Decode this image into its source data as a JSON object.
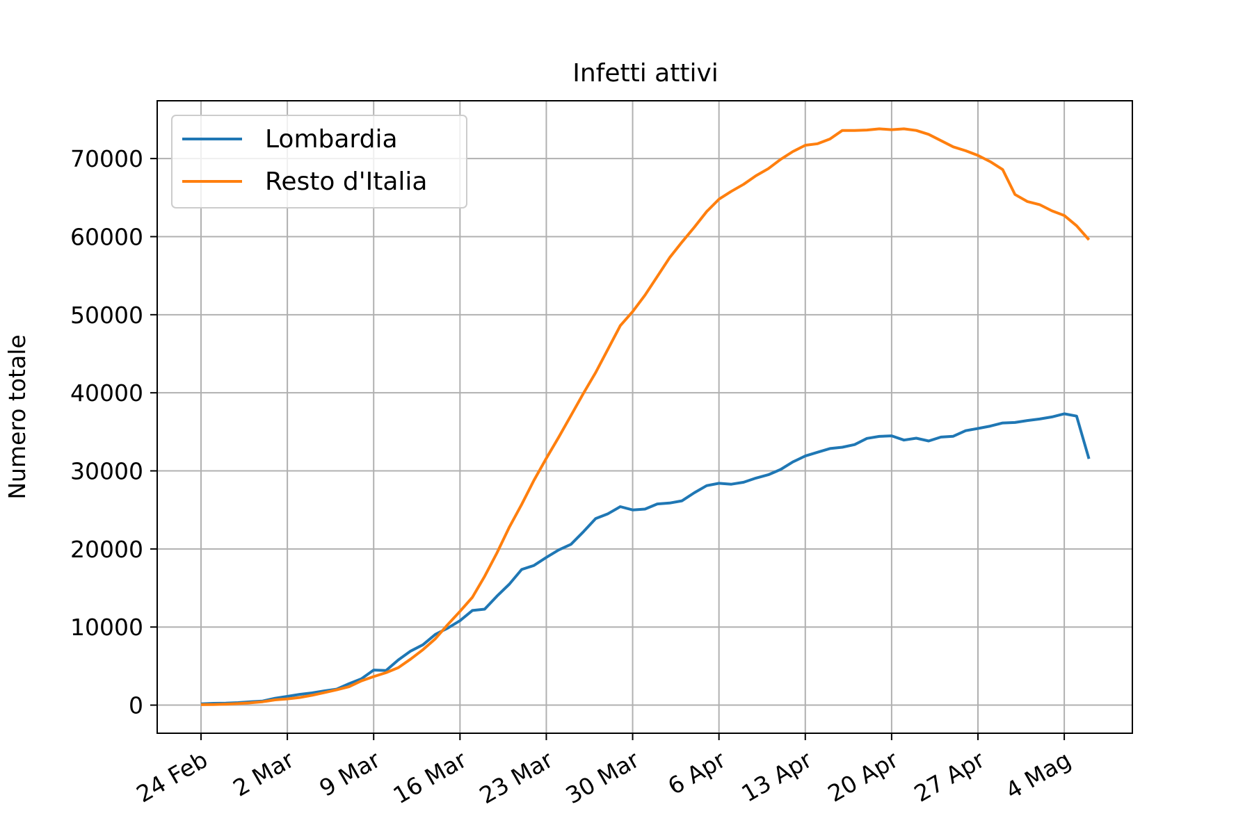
{
  "chart_data": {
    "type": "line",
    "title": "Infetti attivi",
    "xlabel": "",
    "ylabel": "Numero totale",
    "x_start": "24 Feb",
    "x_tick_labels": [
      "24 Feb",
      "2 Mar",
      "9 Mar",
      "16 Mar",
      "23 Mar",
      "30 Mar",
      "6 Apr",
      "13 Apr",
      "20 Apr",
      "27 Apr",
      "4 Mag"
    ],
    "y_ticks": [
      0,
      10000,
      20000,
      30000,
      40000,
      50000,
      60000,
      70000
    ],
    "y_tick_labels": [
      "0",
      "10000",
      "20000",
      "30000",
      "40000",
      "50000",
      "60000",
      "70000"
    ],
    "ylim": [
      -3600,
      77400
    ],
    "grid": true,
    "legend_position": "top-left",
    "series": [
      {
        "name": "Lombardia",
        "color": "#1f77b4",
        "values": [
          166,
          231,
          249,
          319,
          420,
          521,
          880,
          1119,
          1373,
          1564,
          1818,
          2045,
          2746,
          3372,
          4490,
          4427,
          5791,
          6924,
          7732,
          9059,
          9860,
          10814,
          12115,
          12286,
          13963,
          15494,
          17370,
          17886,
          18910,
          19870,
          20591,
          22189,
          23895,
          24509,
          25415,
          24999,
          25110,
          25765,
          25876,
          26162,
          27201,
          28102,
          28410,
          28292,
          28545,
          29074,
          29502,
          30182,
          31152,
          31907,
          32386,
          32860,
          33030,
          33369,
          34156,
          34421,
          34490,
          33947,
          34185,
          33831,
          34328,
          34438,
          35150,
          35427,
          35734,
          36136,
          36200,
          36447,
          36641,
          36913,
          37307,
          37015,
          31543
        ]
      },
      {
        "name": "Resto d'Italia",
        "color": "#ff7f0e",
        "values": [
          55,
          80,
          125,
          190,
          291,
          429,
          673,
          797,
          971,
          1262,
          1600,
          1950,
          2354,
          3100,
          3650,
          4150,
          4800,
          5900,
          7100,
          8500,
          10300,
          12000,
          13800,
          16500,
          19500,
          22800,
          25700,
          28800,
          31600,
          34300,
          37100,
          39900,
          42600,
          45600,
          48600,
          50400,
          52500,
          54900,
          57300,
          59300,
          61200,
          63200,
          64800,
          65800,
          66700,
          67800,
          68700,
          69900,
          70900,
          71700,
          71900,
          72500,
          73600,
          73600,
          73650,
          73800,
          73700,
          73800,
          73600,
          73100,
          72300,
          71500,
          71000,
          70400,
          69600,
          68600,
          65400,
          64500,
          64100,
          63300,
          62700,
          61400,
          59600
        ]
      }
    ]
  }
}
